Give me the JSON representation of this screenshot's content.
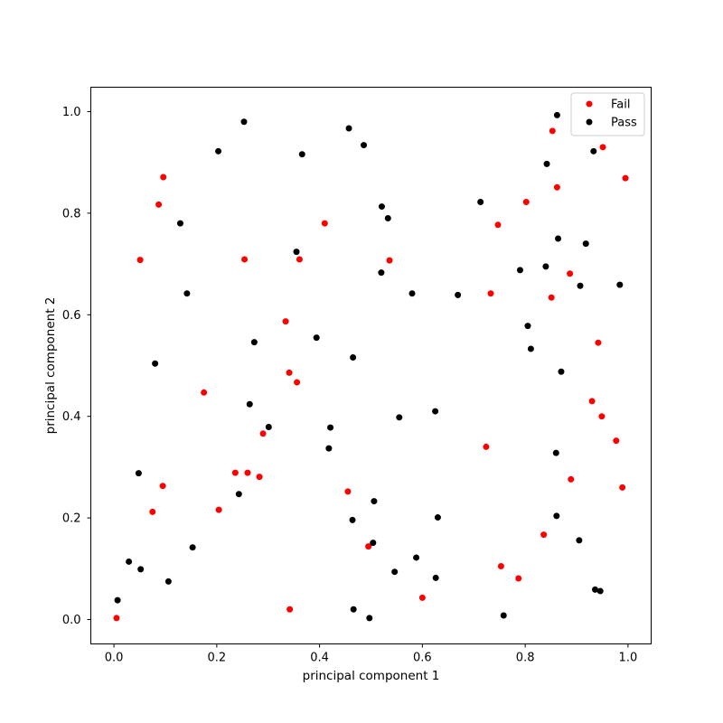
{
  "chart_data": {
    "type": "scatter",
    "xlabel": "principal component 1",
    "ylabel": "principal component 2",
    "xlim": [
      -0.045,
      1.045
    ],
    "ylim": [
      -0.048,
      1.048
    ],
    "xticks": [
      0.0,
      0.2,
      0.4,
      0.6,
      0.8,
      1.0
    ],
    "yticks": [
      0.0,
      0.2,
      0.4,
      0.6,
      0.8,
      1.0
    ],
    "grid": false,
    "legend_position": "top-right",
    "series": [
      {
        "name": "Fail",
        "color": "#ff0000",
        "points": [
          [
            0.005,
            0.003
          ],
          [
            0.051,
            0.708
          ],
          [
            0.075,
            0.212
          ],
          [
            0.087,
            0.817
          ],
          [
            0.095,
            0.263
          ],
          [
            0.096,
            0.871
          ],
          [
            0.175,
            0.447
          ],
          [
            0.204,
            0.216
          ],
          [
            0.236,
            0.289
          ],
          [
            0.254,
            0.709
          ],
          [
            0.26,
            0.289
          ],
          [
            0.283,
            0.281
          ],
          [
            0.29,
            0.366
          ],
          [
            0.334,
            0.587
          ],
          [
            0.341,
            0.486
          ],
          [
            0.342,
            0.02
          ],
          [
            0.356,
            0.467
          ],
          [
            0.361,
            0.709
          ],
          [
            0.41,
            0.78
          ],
          [
            0.455,
            0.252
          ],
          [
            0.495,
            0.144
          ],
          [
            0.536,
            0.707
          ],
          [
            0.6,
            0.043
          ],
          [
            0.724,
            0.34
          ],
          [
            0.733,
            0.642
          ],
          [
            0.747,
            0.777
          ],
          [
            0.753,
            0.105
          ],
          [
            0.787,
            0.081
          ],
          [
            0.802,
            0.822
          ],
          [
            0.836,
            0.167
          ],
          [
            0.851,
            0.634
          ],
          [
            0.853,
            0.962
          ],
          [
            0.862,
            0.851
          ],
          [
            0.887,
            0.681
          ],
          [
            0.889,
            0.276
          ],
          [
            0.93,
            0.43
          ],
          [
            0.942,
            0.545
          ],
          [
            0.949,
            0.4
          ],
          [
            0.951,
            0.93
          ],
          [
            0.977,
            0.352
          ],
          [
            0.989,
            0.26
          ],
          [
            0.995,
            0.869
          ]
        ]
      },
      {
        "name": "Pass",
        "color": "#000000",
        "points": [
          [
            0.007,
            0.038
          ],
          [
            0.029,
            0.114
          ],
          [
            0.048,
            0.288
          ],
          [
            0.052,
            0.099
          ],
          [
            0.08,
            0.504
          ],
          [
            0.106,
            0.075
          ],
          [
            0.129,
            0.78
          ],
          [
            0.142,
            0.642
          ],
          [
            0.153,
            0.142
          ],
          [
            0.203,
            0.922
          ],
          [
            0.243,
            0.247
          ],
          [
            0.253,
            0.98
          ],
          [
            0.264,
            0.424
          ],
          [
            0.273,
            0.546
          ],
          [
            0.301,
            0.379
          ],
          [
            0.355,
            0.724
          ],
          [
            0.366,
            0.916
          ],
          [
            0.394,
            0.555
          ],
          [
            0.418,
            0.337
          ],
          [
            0.421,
            0.378
          ],
          [
            0.457,
            0.967
          ],
          [
            0.464,
            0.196
          ],
          [
            0.465,
            0.516
          ],
          [
            0.466,
            0.02
          ],
          [
            0.486,
            0.934
          ],
          [
            0.497,
            0.003
          ],
          [
            0.504,
            0.151
          ],
          [
            0.506,
            0.233
          ],
          [
            0.52,
            0.683
          ],
          [
            0.521,
            0.813
          ],
          [
            0.533,
            0.79
          ],
          [
            0.546,
            0.094
          ],
          [
            0.555,
            0.398
          ],
          [
            0.58,
            0.642
          ],
          [
            0.588,
            0.122
          ],
          [
            0.625,
            0.41
          ],
          [
            0.626,
            0.082
          ],
          [
            0.63,
            0.201
          ],
          [
            0.669,
            0.639
          ],
          [
            0.713,
            0.822
          ],
          [
            0.758,
            0.008
          ],
          [
            0.79,
            0.688
          ],
          [
            0.805,
            0.578
          ],
          [
            0.811,
            0.533
          ],
          [
            0.84,
            0.695
          ],
          [
            0.842,
            0.897
          ],
          [
            0.86,
            0.328
          ],
          [
            0.861,
            0.204
          ],
          [
            0.862,
            0.993
          ],
          [
            0.864,
            0.75
          ],
          [
            0.87,
            0.488
          ],
          [
            0.905,
            0.156
          ],
          [
            0.907,
            0.657
          ],
          [
            0.918,
            0.74
          ],
          [
            0.933,
            0.922
          ],
          [
            0.936,
            0.059
          ],
          [
            0.946,
            0.056
          ],
          [
            0.984,
            0.659
          ]
        ]
      }
    ]
  }
}
